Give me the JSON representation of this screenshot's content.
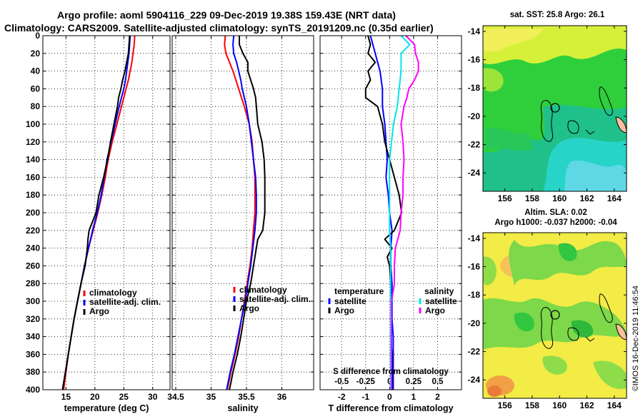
{
  "header": {
    "line1": "Argo profile: aoml 5904116_229 09-Dec-2019 19.38S 159.43E (NRT data)",
    "line2": "Climatology: CARS2009. Satellite-adjusted climatology: synTS_20191209.nc (0.35d earlier)"
  },
  "maps": {
    "sst_title": "sat. SST: 25.8 Argo: 26.1",
    "sla_title1": "Altim. SLA: 0.02",
    "sla_title2": "Argo h1000: -0.037 h2000: -0.04",
    "lon_ticks": [
      "156",
      "158",
      "160",
      "162",
      "164"
    ],
    "lat_ticks": [
      "-14",
      "-16",
      "-18",
      "-20",
      "-22",
      "-24"
    ],
    "float_marker": "o"
  },
  "credit": "©IMOS 16-Dec-2019 11:46:54",
  "colors": {
    "climatology": "#ff0000",
    "satellite": "#0000ff",
    "argo": "#000000",
    "s_satellite": "#00e5ee",
    "s_argo": "#ff00ff"
  },
  "chart_data": [
    {
      "type": "line",
      "title": "",
      "xlabel": "temperature (deg C)",
      "ylabel": "",
      "xlim": [
        11,
        33
      ],
      "ylim": [
        400,
        0
      ],
      "xticks": [
        15,
        20,
        25,
        30
      ],
      "yticks": [
        0,
        20,
        40,
        60,
        80,
        100,
        120,
        140,
        160,
        180,
        200,
        220,
        240,
        260,
        280,
        300,
        320,
        340,
        360,
        380,
        400
      ],
      "legend": [
        "climatology",
        "satellite-adj. clim.",
        "Argo"
      ],
      "series": [
        {
          "name": "climatology",
          "depth": [
            0,
            10,
            20,
            30,
            40,
            50,
            60,
            70,
            80,
            100,
            120,
            140,
            160,
            180,
            200,
            220,
            240,
            260,
            280,
            300,
            320,
            340,
            360,
            380,
            400
          ],
          "values": [
            26.9,
            26.8,
            26.6,
            26.4,
            26.1,
            25.8,
            25.4,
            25.0,
            24.6,
            23.8,
            23.0,
            22.3,
            21.8,
            21.2,
            20.5,
            19.7,
            18.9,
            18.2,
            17.6,
            17.0,
            16.4,
            15.9,
            15.4,
            15.0,
            14.6
          ]
        },
        {
          "name": "satellite-adj. clim.",
          "depth": [
            0,
            10,
            20,
            30,
            40,
            50,
            60,
            70,
            80,
            100,
            120,
            140,
            160,
            180,
            200,
            220,
            240,
            260,
            280,
            300,
            320,
            340,
            360,
            380,
            400
          ],
          "values": [
            26.1,
            26.0,
            25.9,
            25.7,
            25.5,
            25.3,
            25.0,
            24.6,
            24.2,
            23.5,
            22.8,
            22.1,
            21.6,
            21.1,
            20.4,
            19.6,
            18.9,
            18.2,
            17.6,
            17.0,
            16.4,
            15.9,
            15.4,
            14.9,
            14.4
          ]
        },
        {
          "name": "Argo",
          "depth": [
            0,
            10,
            20,
            30,
            40,
            50,
            60,
            70,
            80,
            100,
            120,
            140,
            160,
            180,
            200,
            210,
            220,
            230,
            240,
            250,
            260,
            280,
            300,
            320,
            340,
            360,
            380,
            400
          ],
          "values": [
            26.0,
            25.9,
            25.8,
            25.5,
            25.2,
            24.8,
            24.5,
            24.1,
            23.9,
            23.3,
            22.7,
            22.2,
            21.5,
            20.7,
            20.2,
            19.6,
            19.0,
            18.8,
            18.7,
            18.5,
            18.3,
            17.6,
            17.0,
            16.4,
            15.9,
            15.4,
            14.9,
            14.4
          ]
        }
      ]
    },
    {
      "type": "line",
      "title": "",
      "xlabel": "salinity",
      "ylabel": "",
      "xlim": [
        34.45,
        36.45
      ],
      "ylim": [
        400,
        0
      ],
      "xticks": [
        34.5,
        35,
        35.5,
        36
      ],
      "legend": [
        "climatology",
        "satellite-adj. clim.",
        "Argo"
      ],
      "series": [
        {
          "name": "climatology",
          "depth": [
            0,
            10,
            20,
            30,
            40,
            50,
            60,
            70,
            80,
            100,
            120,
            140,
            160,
            180,
            200,
            220,
            240,
            260,
            280,
            300,
            320,
            340,
            360,
            380,
            400
          ],
          "values": [
            35.2,
            35.19,
            35.21,
            35.26,
            35.31,
            35.35,
            35.39,
            35.43,
            35.47,
            35.54,
            35.58,
            35.6,
            35.62,
            35.62,
            35.62,
            35.6,
            35.58,
            35.55,
            35.51,
            35.47,
            35.43,
            35.39,
            35.34,
            35.28,
            35.23
          ]
        },
        {
          "name": "satellite-adj. clim.",
          "depth": [
            0,
            10,
            20,
            30,
            40,
            50,
            60,
            70,
            80,
            100,
            120,
            140,
            160,
            180,
            200,
            220,
            240,
            260,
            280,
            300,
            320,
            340,
            360,
            380,
            400
          ],
          "values": [
            35.32,
            35.31,
            35.32,
            35.36,
            35.39,
            35.42,
            35.44,
            35.47,
            35.5,
            35.54,
            35.57,
            35.6,
            35.63,
            35.64,
            35.64,
            35.62,
            35.59,
            35.56,
            35.52,
            35.48,
            35.43,
            35.38,
            35.33,
            35.27,
            35.22
          ]
        },
        {
          "name": "Argo",
          "depth": [
            0,
            10,
            20,
            30,
            40,
            50,
            60,
            70,
            80,
            100,
            120,
            140,
            160,
            180,
            200,
            220,
            230,
            240,
            260,
            280,
            300,
            320,
            340,
            360,
            380,
            400
          ],
          "values": [
            35.4,
            35.4,
            35.45,
            35.52,
            35.52,
            35.56,
            35.6,
            35.63,
            35.64,
            35.66,
            35.72,
            35.75,
            35.76,
            35.76,
            35.76,
            35.73,
            35.66,
            35.64,
            35.6,
            35.56,
            35.5,
            35.46,
            35.42,
            35.37,
            35.31,
            35.26
          ]
        }
      ]
    },
    {
      "type": "line",
      "title": "",
      "xlabel": "T difference from climatology",
      "xlabel_top": "S difference from climatology",
      "ylabel": "",
      "xlim": [
        -2.9,
        3.0
      ],
      "ylim": [
        400,
        0
      ],
      "xticks": [
        -2,
        -1,
        0,
        1,
        2
      ],
      "xticks_s": [
        -0.5,
        -0.25,
        0,
        0.25,
        0.5
      ],
      "legend_headers": [
        "temperature",
        "salinity"
      ],
      "legend": [
        "satellite",
        "Argo",
        "satellite",
        "Argo"
      ],
      "series": [
        {
          "name": "T satellite",
          "depth": [
            0,
            20,
            40,
            60,
            80,
            100,
            120,
            140,
            160,
            180,
            200,
            220,
            240,
            260,
            280,
            300,
            320,
            340,
            360,
            380,
            400
          ],
          "values": [
            -0.8,
            -0.6,
            -0.4,
            -0.3,
            -0.3,
            -0.2,
            -0.15,
            -0.1,
            -0.15,
            -0.05,
            0.0,
            0.1,
            0.05,
            0.05,
            0.1,
            0.1,
            0.1,
            0.15,
            0.15,
            0.15,
            0.15
          ]
        },
        {
          "name": "T Argo",
          "depth": [
            0,
            10,
            20,
            30,
            40,
            50,
            60,
            70,
            80,
            90,
            100,
            120,
            140,
            160,
            180,
            200,
            220,
            230,
            240,
            250,
            260,
            280,
            300,
            320,
            340,
            360,
            380,
            400
          ],
          "values": [
            -0.9,
            -0.8,
            -0.9,
            -0.6,
            -0.9,
            -0.8,
            -1.0,
            -1.0,
            -0.5,
            -0.4,
            -0.3,
            -0.2,
            0.0,
            0.2,
            0.4,
            0.5,
            0.2,
            -0.2,
            0.1,
            -0.1,
            0.0,
            0.05,
            0.05,
            0.05,
            0.05,
            0.1,
            0.1,
            0.1
          ]
        },
        {
          "name": "S satellite",
          "depth": [
            0,
            10,
            20,
            30,
            40,
            60,
            80,
            100,
            120,
            140,
            160,
            180,
            200,
            220,
            240,
            260,
            280,
            300,
            320,
            340,
            360,
            380,
            400
          ],
          "values": [
            0.12,
            0.21,
            0.12,
            0.12,
            0.12,
            0.1,
            0.08,
            0.04,
            0.02,
            0.0,
            0.0,
            0.0,
            0.0,
            0.0,
            0.01,
            0.01,
            0.01,
            0.01,
            0.01,
            0.01,
            0.01,
            0.01,
            0.01
          ]
        },
        {
          "name": "S Argo",
          "depth": [
            0,
            10,
            20,
            30,
            40,
            50,
            60,
            70,
            80,
            100,
            120,
            140,
            160,
            180,
            200,
            220,
            240,
            260,
            280,
            300,
            320,
            340,
            360,
            380,
            400
          ],
          "values": [
            0.17,
            0.26,
            0.27,
            0.3,
            0.3,
            0.26,
            0.2,
            0.18,
            0.15,
            0.12,
            0.14,
            0.15,
            0.14,
            0.14,
            0.12,
            0.11,
            0.06,
            0.05,
            0.05,
            0.02,
            0.02,
            0.02,
            0.02,
            0.02,
            0.02
          ]
        }
      ]
    }
  ]
}
